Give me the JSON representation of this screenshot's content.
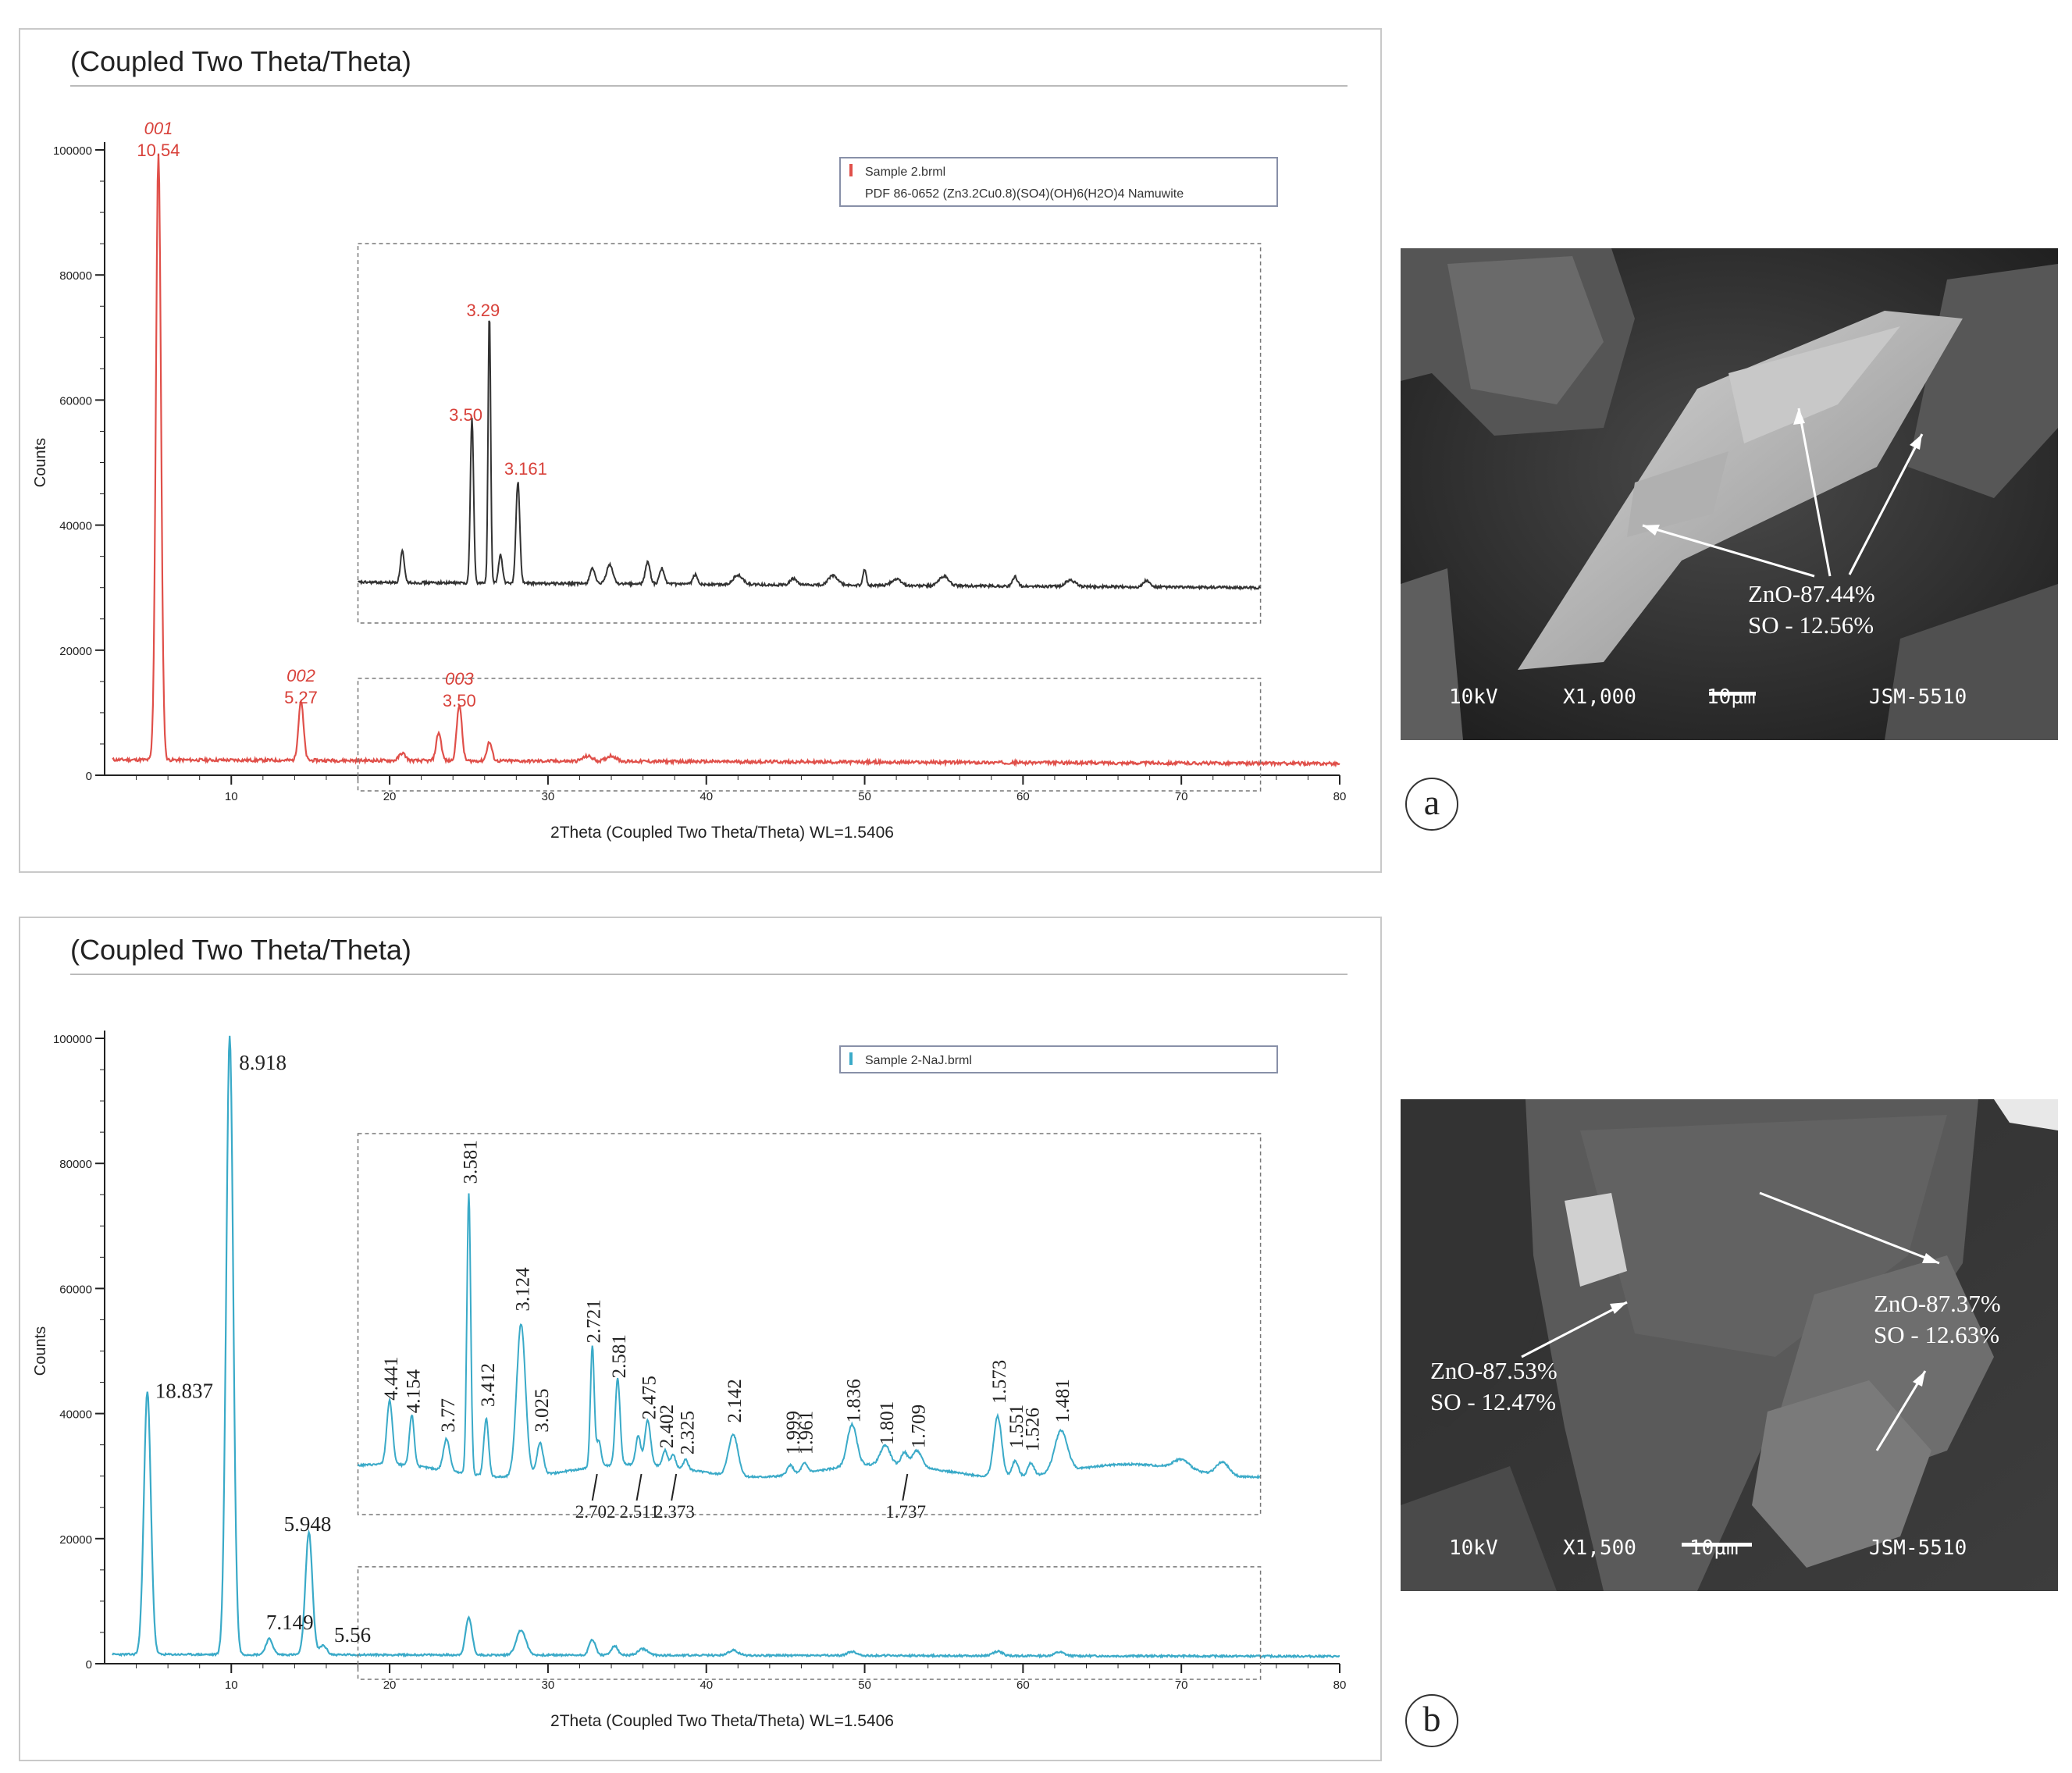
{
  "panels": {
    "a": {
      "title": "(Coupled Two Theta/Theta)",
      "ylabel": "Counts",
      "xlabel": "2Theta (Coupled Two Theta/Theta) WL=1.5406",
      "legend": [
        "Sample 2.brml",
        "PDF 86-0652 (Zn3.2Cu0.8)(SO4)(OH)6(H2O)4 Namuwite"
      ],
      "colors": {
        "main": "#e0504a",
        "inset": "#333333",
        "text": "#d8413a"
      }
    },
    "b": {
      "title": "(Coupled Two Theta/Theta)",
      "ylabel": "Counts",
      "xlabel": "2Theta (Coupled Two Theta/Theta) WL=1.5406",
      "legend": [
        "Sample 2-NaJ.brml"
      ],
      "colors": {
        "main": "#3aaac8",
        "inset": "#3aaac8",
        "text": "#222222"
      }
    }
  },
  "chart_data": [
    {
      "type": "line",
      "title": "(Coupled Two Theta/Theta)",
      "xlabel": "2Theta (Coupled Two Theta/Theta) WL=1.5406",
      "ylabel": "Counts",
      "xlim": [
        2,
        80
      ],
      "ylim": [
        0,
        100000
      ],
      "xticks": [
        10,
        20,
        30,
        40,
        50,
        60,
        70,
        80
      ],
      "yticks": [
        0,
        20000,
        40000,
        60000,
        80000,
        100000
      ],
      "series": [
        {
          "name": "Sample 2.brml",
          "peaks": [
            [
              5.4,
              97000
            ],
            [
              14.4,
              9500
            ],
            [
              23.1,
              4500
            ],
            [
              24.4,
              9000
            ],
            [
              26.3,
              3000
            ]
          ]
        }
      ],
      "peak_labels": [
        {
          "x": 5.4,
          "hkl": "001",
          "d": "10.54"
        },
        {
          "x": 14.4,
          "hkl": "002",
          "d": "5.27"
        },
        {
          "x": 24.4,
          "hkl": "003",
          "d": "3.50"
        }
      ],
      "inset_peak_labels": [
        {
          "x": 26.3,
          "d": "3.29"
        },
        {
          "x": 25.2,
          "d": "3.50"
        },
        {
          "x": 28.1,
          "d": "3.161"
        }
      ]
    },
    {
      "type": "line",
      "title": "(Coupled Two Theta/Theta)",
      "xlabel": "2Theta (Coupled Two Theta/Theta) WL=1.5406",
      "ylabel": "Counts",
      "xlim": [
        2,
        80
      ],
      "ylim": [
        0,
        100000
      ],
      "xticks": [
        10,
        20,
        30,
        40,
        50,
        60,
        70,
        80
      ],
      "yticks": [
        0,
        20000,
        40000,
        60000,
        80000,
        100000
      ],
      "series": [
        {
          "name": "Sample 2-NaJ.brml",
          "peaks": [
            [
              4.7,
              42000
            ],
            [
              9.9,
              99000
            ],
            [
              12.4,
              2500
            ],
            [
              14.9,
              19500
            ],
            [
              15.8,
              1500
            ]
          ]
        }
      ],
      "peak_labels": [
        {
          "x": 4.7,
          "d": "18.837"
        },
        {
          "x": 9.9,
          "d": "8.918"
        },
        {
          "x": 12.4,
          "d": "7.149"
        },
        {
          "x": 14.9,
          "d": "5.948"
        },
        {
          "x": 15.8,
          "d": "5.56"
        }
      ],
      "inset_peak_labels_rotated": [
        "4.441",
        "4.154",
        "3.77",
        "3.581",
        "3.412",
        "3.124",
        "3.025",
        "2.721",
        "2.581",
        "2.475",
        "2.402",
        "2.325",
        "2.142",
        "1.999",
        "1.961",
        "1.836",
        "1.801",
        "1.709",
        "1.573",
        "1.551",
        "1.526",
        "1.481"
      ],
      "inset_peak_labels_below": [
        "2.702",
        "2.511",
        "2.373",
        "1.737"
      ]
    }
  ],
  "sem": {
    "a": {
      "annotation": [
        "ZnO-87.44%",
        "SO - 12.56%"
      ],
      "footer": {
        "kv": "10kV",
        "mag": "X1,000",
        "scale": "10µm",
        "instrument": "JSM-5510"
      }
    },
    "b": {
      "annotation_left": [
        "ZnO-87.53%",
        "SO - 12.47%"
      ],
      "annotation_right": [
        "ZnO-87.37%",
        "SO - 12.63%"
      ],
      "footer": {
        "kv": "10kV",
        "mag": "X1,500",
        "scale": "10µm",
        "instrument": "JSM-5510"
      }
    }
  },
  "labels": {
    "a": "a",
    "b": "b"
  }
}
